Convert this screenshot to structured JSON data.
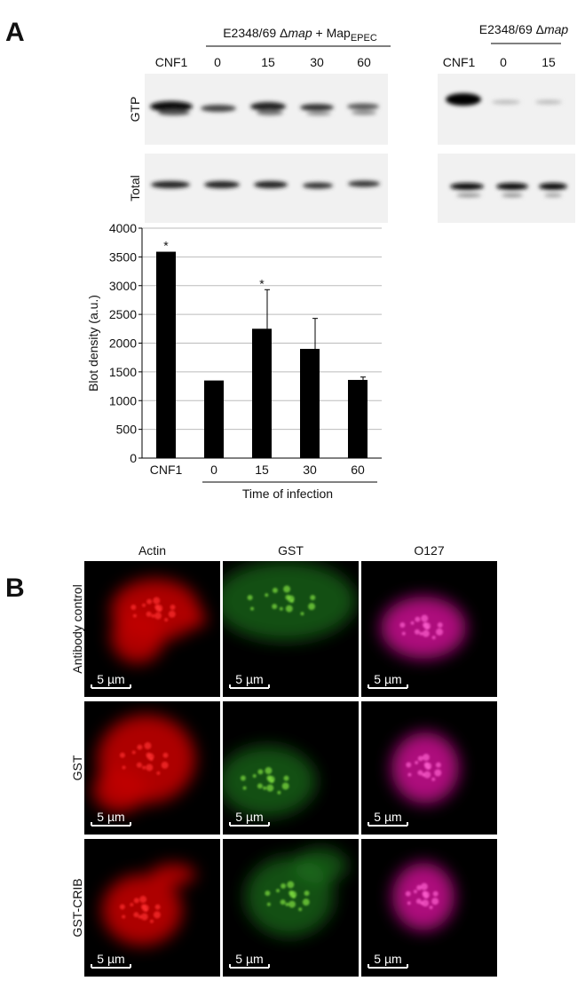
{
  "panel_a": {
    "letter": "A",
    "left_strain": {
      "prefix": "E2348/69 Δ",
      "italic": "map",
      "suffix": " + Map",
      "subscript": "EPEC"
    },
    "left_lanes": [
      "CNF1",
      "0",
      "15",
      "30",
      "60"
    ],
    "right_strain": {
      "prefix": "E2348/69 Δ",
      "italic": "map"
    },
    "right_lanes": [
      "CNF1",
      "0",
      "15"
    ],
    "blot_rows": [
      "GTP",
      "Total"
    ]
  },
  "chart_data": {
    "type": "bar",
    "ylabel": "Blot density (a.u.)",
    "xlabel": "Time of infection",
    "categories": [
      "CNF1",
      "0",
      "15",
      "30",
      "60"
    ],
    "values": [
      3590,
      1350,
      2250,
      1900,
      1360
    ],
    "errors": [
      null,
      null,
      680,
      530,
      50
    ],
    "significance": [
      "*",
      null,
      "*",
      null,
      null
    ],
    "color": "#000000",
    "ylim": [
      0,
      4000
    ],
    "yticks": [
      0,
      500,
      1000,
      1500,
      2000,
      2500,
      3000,
      3500,
      4000
    ],
    "grid": true
  },
  "panel_b": {
    "letter": "B",
    "columns": [
      "Actin",
      "GST",
      "O127"
    ],
    "rows": [
      "Antibody control",
      "GST",
      "GST-CRIB"
    ],
    "scale_bar": "5 µm"
  }
}
